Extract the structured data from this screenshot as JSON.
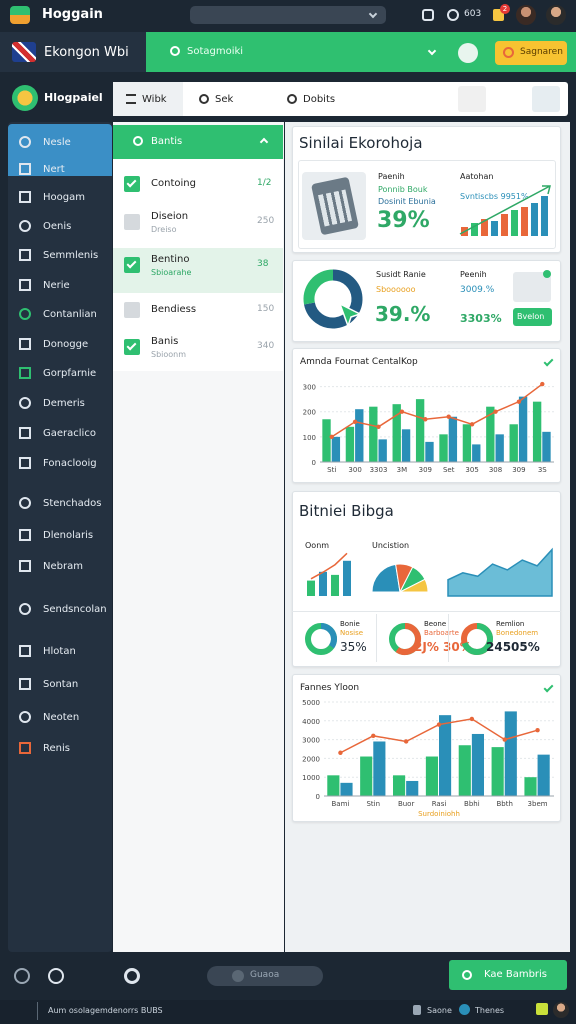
{
  "topbar": {
    "app_name": "Hoggain",
    "status": "603",
    "badge": "2"
  },
  "header": {
    "brand": "Ekongon Wbi",
    "search_placeholder": "Sotagmoiki",
    "action": "Sagnaren"
  },
  "sidebar": {
    "workspace": "Hlogpaiel",
    "items": [
      "Nesle",
      "Nert",
      "Hoogam",
      "Oenis",
      "Semmlenis",
      "Nerie",
      "Contanlian",
      "Donogge",
      "Gorpfarnie",
      "Demeris",
      "Gaeraclico",
      "Fonaclooig",
      "Stenchados",
      "Dlenolaris",
      "Nebram",
      "Sendsncolan",
      "Hlotan",
      "Sontan",
      "Neoten",
      "Renis"
    ]
  },
  "toolbar": {
    "tabs": [
      "Wibk",
      "Sek",
      "Dobits"
    ]
  },
  "task_list": {
    "title": "Bantis",
    "items": [
      {
        "label": "Contoing",
        "value": "1/2",
        "checked": true
      },
      {
        "label": "Diseion",
        "sub": "Dreiso",
        "value": "250",
        "checked": false
      },
      {
        "label": "Bentino",
        "sub": "Sbioarahe",
        "value": "38",
        "checked": true,
        "selected": true
      },
      {
        "label": "Bendiess",
        "value": "150",
        "checked": false
      },
      {
        "label": "Banis",
        "sub": "Sbioonm",
        "value": "340",
        "checked": true
      }
    ]
  },
  "summary": {
    "title": "Sinilai Ekorohoja",
    "left": {
      "label": "Paenih",
      "line1": "Ponnib Bouk",
      "line2": "Dosinit Ebunia",
      "value": "39%"
    },
    "right": {
      "label": "Aatohan",
      "line1": "Svntiscbs 9951%"
    },
    "trend": {
      "ylim": [
        0,
        100
      ],
      "values": [
        18,
        26,
        34,
        30,
        44,
        52,
        58,
        66,
        80
      ],
      "colors": [
        "#e8673a",
        "#2fbf71",
        "#e8673a",
        "#2a8fb8",
        "#e8673a",
        "#2fbf71",
        "#e8673a",
        "#2a8fb8",
        "#2a8fb8"
      ]
    }
  },
  "progress": {
    "donut": {
      "values": [
        72,
        28
      ],
      "colors": [
        "#235a82",
        "#2fbf71"
      ]
    },
    "label": "Susidt Ranie",
    "sub": "Sboooooo",
    "value": "39.%",
    "right_label": "Peenih",
    "right_line1": "3009.%",
    "right_line2": "3303%",
    "button": "Bvelon"
  },
  "chart_a": {
    "type": "bar",
    "title": "Amnda Fournat CentalKop",
    "grid": true,
    "ylim": [
      0,
      350
    ],
    "yticks": [
      0,
      100,
      200,
      300
    ],
    "categories": [
      "Sti",
      "300",
      "3303",
      "3M",
      "309",
      "Set",
      "305",
      "308",
      "309",
      "3S"
    ],
    "series": [
      {
        "color": "#2fbf71",
        "values": [
          170,
          140,
          220,
          230,
          250,
          110,
          150,
          220,
          150,
          240
        ]
      },
      {
        "color": "#2a8fb8",
        "values": [
          100,
          210,
          90,
          130,
          80,
          180,
          70,
          110,
          260,
          120
        ]
      },
      {
        "color": "#e8673a",
        "kind": "line",
        "values": [
          100,
          160,
          140,
          200,
          170,
          180,
          150,
          200,
          240,
          310
        ]
      }
    ]
  },
  "overview": {
    "title": "Bitniei Bibga",
    "mini": [
      {
        "type": "bar",
        "label": "Oonm",
        "ylim": [
          0,
          100
        ],
        "color": "#2a8fb8",
        "values": [
          35,
          55,
          48,
          80
        ],
        "trend_color": "#e8673a",
        "trend": [
          30,
          45,
          62,
          88
        ]
      },
      {
        "type": "pie",
        "label": "Uncistion",
        "colors": [
          "#2a8fb8",
          "#e8673a",
          "#2fbf71",
          "#f5c542"
        ],
        "values": [
          45,
          20,
          20,
          15
        ]
      },
      {
        "type": "area",
        "ylim": [
          0,
          100
        ],
        "color": "#3aa7c9",
        "values": [
          28,
          40,
          34,
          55,
          45,
          62,
          52,
          80
        ]
      }
    ],
    "stats": [
      {
        "label": "Bonie",
        "sub": "Nosise",
        "value": "35%",
        "donut": 35,
        "colors": [
          "#2a8fb8",
          "#2fbf71"
        ]
      },
      {
        "label": "Beone",
        "sub": "Barboarte",
        "value": "2J% 30%",
        "donut": 60,
        "colors": [
          "#e8673a",
          "#2fbf71"
        ]
      },
      {
        "label": "Remlion",
        "sub": "Bonedonem",
        "value": "24505%",
        "donut": 70,
        "colors": [
          "#2fbf71",
          "#e8673a"
        ]
      }
    ]
  },
  "chart_b": {
    "type": "bar",
    "title": "Fannes Yloon",
    "x_label": "Surdoiniohh",
    "grid": true,
    "ylim": [
      0,
      5000
    ],
    "yticks": [
      0,
      1000,
      2000,
      3000,
      4000,
      5000
    ],
    "categories": [
      "Bami",
      "Stin",
      "Buor",
      "Rasi",
      "Bbhi",
      "Bbth",
      "3bem"
    ],
    "series": [
      {
        "color": "#2fbf71",
        "values": [
          1100,
          2100,
          1100,
          2100,
          2700,
          2600,
          1000
        ]
      },
      {
        "color": "#2a8fb8",
        "values": [
          700,
          2900,
          800,
          4300,
          3300,
          4500,
          2200
        ]
      },
      {
        "color": "#e8673a",
        "kind": "line",
        "values": [
          2300,
          3200,
          2900,
          3800,
          4100,
          3000,
          3500
        ]
      }
    ]
  },
  "bottom": {
    "search": "Guaoa",
    "action": "Kae Bambris",
    "footer": "Aum osolagemdenorrs BUBS",
    "footer_right": [
      "Saone",
      "Thenes"
    ]
  }
}
